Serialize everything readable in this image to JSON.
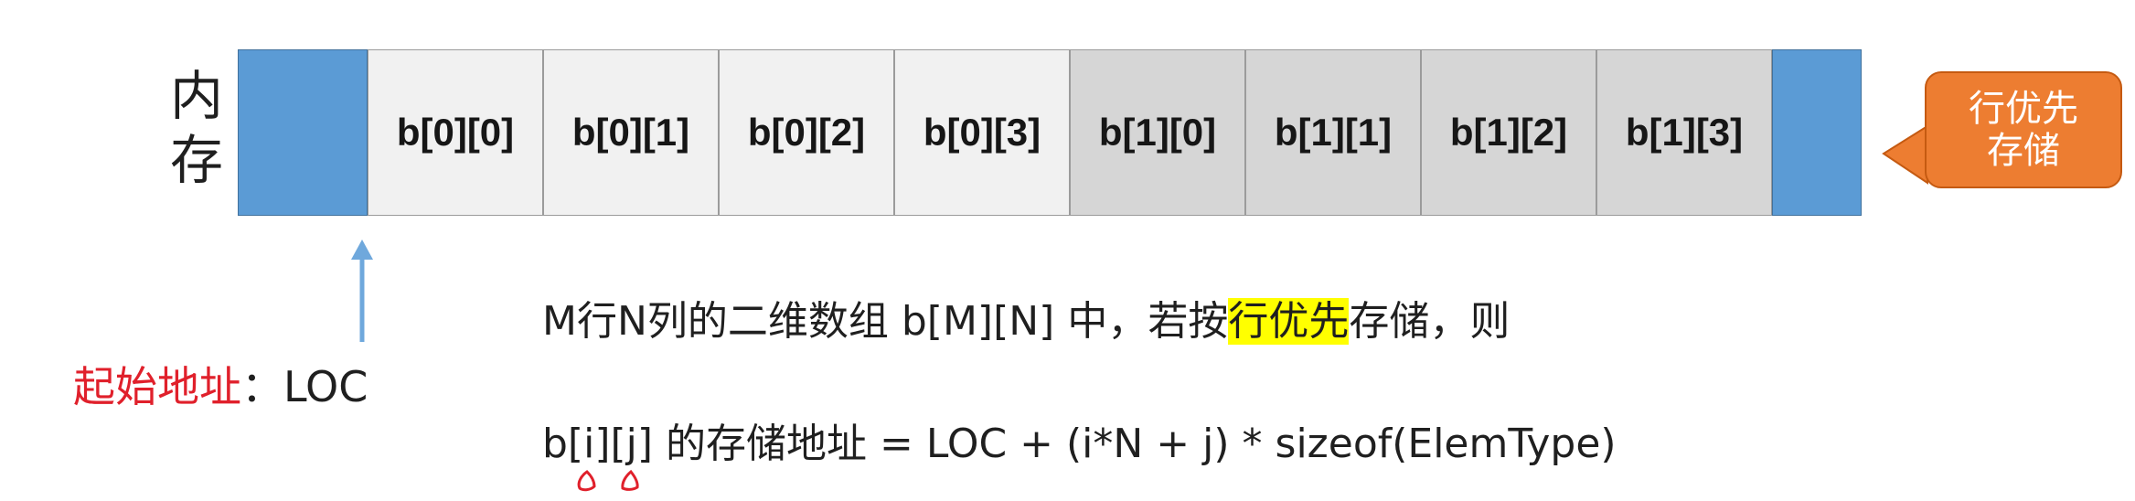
{
  "memory_label": [
    "内",
    "存"
  ],
  "cells": [
    {
      "text": "b[0][0]",
      "row": 0
    },
    {
      "text": "b[0][1]",
      "row": 0
    },
    {
      "text": "b[0][2]",
      "row": 0
    },
    {
      "text": "b[0][3]",
      "row": 0
    },
    {
      "text": "b[1][0]",
      "row": 1
    },
    {
      "text": "b[1][1]",
      "row": 1
    },
    {
      "text": "b[1][2]",
      "row": 1
    },
    {
      "text": "b[1][3]",
      "row": 1
    }
  ],
  "callout": [
    "行优先",
    "存储"
  ],
  "start_address": {
    "label": "起始地址",
    "separator": "：",
    "value": "LOC"
  },
  "description": {
    "before": "M行N列的二维数组 b[M][N] 中，若按",
    "highlight": "行优先",
    "after": "存储，则"
  },
  "formula": "b[i][j] 的存储地址 = LOC + (i*N + j) * sizeof(ElemType)",
  "colors": {
    "blue_cell": "#5b9bd5",
    "row0_cell": "#f1f1f1",
    "row1_cell": "#d6d6d6",
    "callout": "#ed7d31",
    "arrow": "#6fa8dc",
    "start_label": "#e0202b",
    "highlight": "#ffff00",
    "annotation_mark": "#e0202b"
  }
}
